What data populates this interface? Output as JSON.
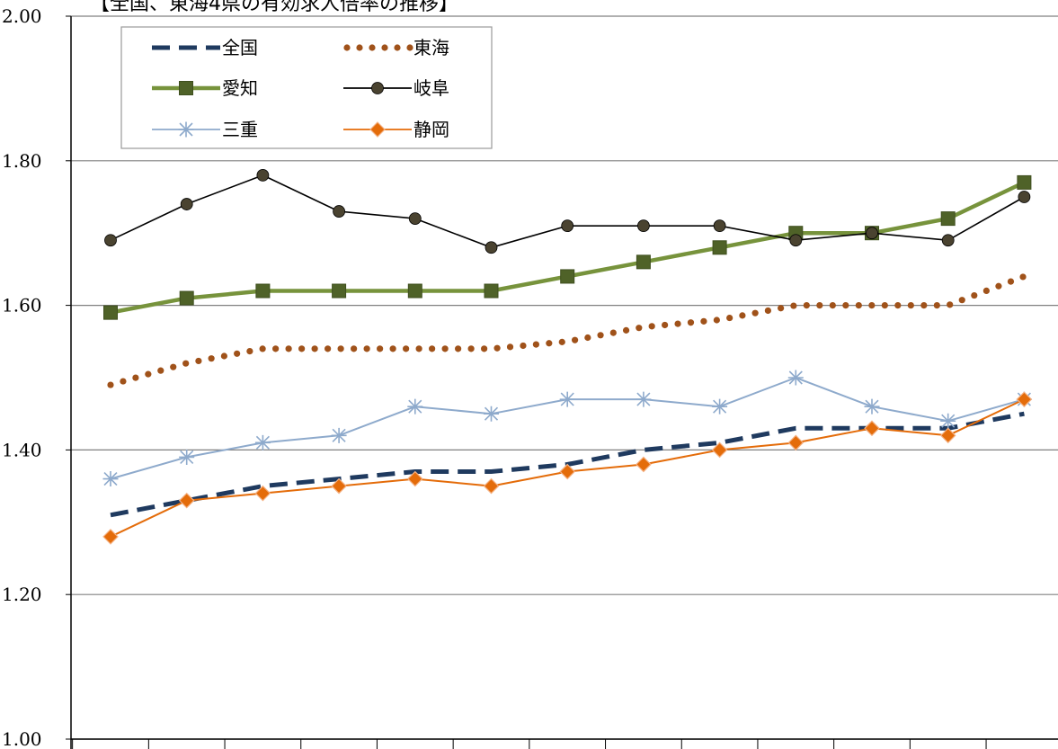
{
  "chart_data": {
    "type": "line",
    "title": "【全国、東海4県の有効求人倍率の推移】",
    "xlabel": "",
    "ylabel": "",
    "ylim": [
      1.0,
      2.0
    ],
    "yticks": [
      "1.00",
      "1.20",
      "1.40",
      "1.60",
      "1.80",
      "2.00"
    ],
    "y_tick_values": [
      1.0,
      1.2,
      1.4,
      1.6,
      1.8,
      2.0
    ],
    "grid": true,
    "legend_position": "top-left",
    "series": [
      {
        "name": "全国",
        "color": "#1f3a5f",
        "style": "dashed",
        "values": [
          1.31,
          1.33,
          1.35,
          1.36,
          1.37,
          1.37,
          1.38,
          1.4,
          1.41,
          1.43,
          1.43,
          1.43,
          1.45
        ]
      },
      {
        "name": "東海",
        "color": "#a0521a",
        "style": "dotted",
        "values": [
          1.49,
          1.52,
          1.54,
          1.54,
          1.54,
          1.54,
          1.55,
          1.57,
          1.58,
          1.6,
          1.6,
          1.6,
          1.64
        ]
      },
      {
        "name": "愛知",
        "color": "#77933c",
        "marker_color": "#4f6228",
        "style": "square",
        "values": [
          1.59,
          1.61,
          1.62,
          1.62,
          1.62,
          1.62,
          1.64,
          1.66,
          1.68,
          1.7,
          1.7,
          1.72,
          1.77
        ]
      },
      {
        "name": "岐阜",
        "color": "#000000",
        "marker_color": "#4a4330",
        "style": "circle",
        "values": [
          1.69,
          1.74,
          1.78,
          1.73,
          1.72,
          1.68,
          1.71,
          1.71,
          1.71,
          1.69,
          1.7,
          1.69,
          1.75
        ]
      },
      {
        "name": "三重",
        "color": "#8eaacc",
        "style": "star",
        "values": [
          1.36,
          1.39,
          1.41,
          1.42,
          1.46,
          1.45,
          1.47,
          1.47,
          1.46,
          1.5,
          1.46,
          1.44,
          1.47
        ]
      },
      {
        "name": "静岡",
        "color": "#e46c0a",
        "marker_color": "#e46c0a",
        "style": "diamond",
        "values": [
          1.28,
          1.33,
          1.34,
          1.35,
          1.36,
          1.35,
          1.37,
          1.38,
          1.4,
          1.41,
          1.43,
          1.42,
          1.47
        ]
      }
    ]
  }
}
